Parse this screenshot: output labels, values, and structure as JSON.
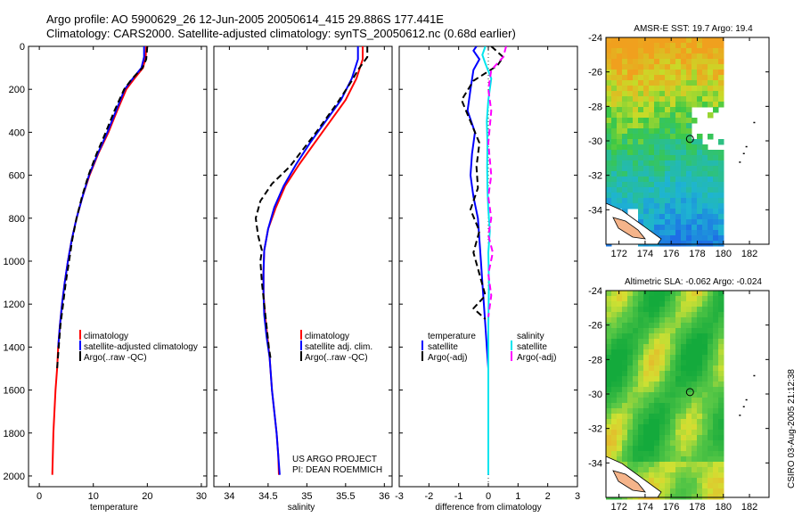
{
  "header": {
    "title_line1": "Argo profile: AO 5900629_26 12-Jun-2005 20050614_415 29.886S 177.441E",
    "title_line2": "Climatology: CARS2000. Satellite-adjusted climatology: synTS_20050612.nc (0.68d earlier)"
  },
  "side_stamp": "CSIRO 03-Aug-2005 21:12:38",
  "colors": {
    "clim": "#ff0000",
    "sat": "#0000ff",
    "argo": "#000000",
    "sal_sat": "#00e5ee",
    "sal_argo": "#ff00ff"
  },
  "labels": {
    "project": "US ARGO PROJECT",
    "pi": "PI: DEAN ROEMMICH",
    "legend_clim": "climatology",
    "legend_sat_adj": "satellite-adjusted climatology",
    "legend_sat_adj_short": "satellite adj. clim.",
    "legend_argo": "Argo(..raw -QC)",
    "legend_temperature": "temperature",
    "legend_salinity": "salinity",
    "legend_satellite": "satellite",
    "legend_argo_adj": "Argo(-adj)"
  },
  "chart_data": [
    {
      "type": "line",
      "name": "temperature_profile",
      "xlabel": "temperature",
      "ylabel": "",
      "xlim": [
        -2,
        31
      ],
      "ylim": [
        2050,
        0
      ],
      "xticks": [
        0,
        10,
        20,
        30
      ],
      "yticks": [
        0,
        200,
        400,
        600,
        800,
        1000,
        1200,
        1400,
        1600,
        1800,
        2000
      ],
      "series": [
        {
          "name": "climatology",
          "color": "#ff0000",
          "dash": false,
          "points": [
            [
              19.8,
              0
            ],
            [
              19.7,
              50
            ],
            [
              19.2,
              100
            ],
            [
              17.6,
              150
            ],
            [
              16.1,
              200
            ],
            [
              14.4,
              300
            ],
            [
              12.8,
              400
            ],
            [
              10.9,
              500
            ],
            [
              9.3,
              600
            ],
            [
              8.0,
              700
            ],
            [
              6.9,
              800
            ],
            [
              6.0,
              900
            ],
            [
              5.3,
              1000
            ],
            [
              4.7,
              1100
            ],
            [
              4.2,
              1200
            ],
            [
              3.8,
              1300
            ],
            [
              3.5,
              1400
            ],
            [
              3.3,
              1500
            ],
            [
              3.0,
              1600
            ],
            [
              2.8,
              1700
            ],
            [
              2.6,
              1800
            ],
            [
              2.5,
              1900
            ],
            [
              2.4,
              1995
            ]
          ]
        },
        {
          "name": "satellite-adjusted climatology",
          "color": "#0000ff",
          "dash": false,
          "points": [
            [
              19.4,
              0
            ],
            [
              19.4,
              50
            ],
            [
              18.9,
              100
            ],
            [
              17.3,
              150
            ],
            [
              15.8,
              200
            ],
            [
              14.2,
              300
            ],
            [
              12.6,
              400
            ],
            [
              10.8,
              500
            ],
            [
              9.2,
              600
            ],
            [
              8.0,
              700
            ],
            [
              6.9,
              800
            ],
            [
              6.0,
              900
            ],
            [
              5.3,
              1000
            ],
            [
              4.7,
              1100
            ],
            [
              4.2,
              1200
            ],
            [
              3.8,
              1300
            ],
            [
              3.5,
              1400
            ]
          ]
        },
        {
          "name": "Argo(..raw -QC)",
          "color": "#000000",
          "dash": true,
          "points": [
            [
              20.0,
              0
            ],
            [
              19.8,
              60
            ],
            [
              19.1,
              100
            ],
            [
              17.2,
              150
            ],
            [
              15.7,
              200
            ],
            [
              13.9,
              300
            ],
            [
              12.3,
              400
            ],
            [
              10.6,
              500
            ],
            [
              9.1,
              600
            ],
            [
              7.9,
              700
            ],
            [
              6.9,
              800
            ],
            [
              6.1,
              900
            ],
            [
              5.5,
              1000
            ],
            [
              4.9,
              1100
            ],
            [
              4.4,
              1200
            ],
            [
              3.9,
              1300
            ],
            [
              3.6,
              1400
            ],
            [
              3.3,
              1500
            ]
          ]
        }
      ]
    },
    {
      "type": "line",
      "name": "salinity_profile",
      "xlabel": "salinity",
      "ylabel": "",
      "xlim": [
        33.8,
        36.1
      ],
      "ylim": [
        2050,
        0
      ],
      "xticks": [
        34,
        34.5,
        35,
        35.5,
        36
      ],
      "series": [
        {
          "name": "climatology",
          "color": "#ff0000",
          "dash": false,
          "points": [
            [
              35.72,
              0
            ],
            [
              35.72,
              60
            ],
            [
              35.64,
              150
            ],
            [
              35.5,
              250
            ],
            [
              35.3,
              350
            ],
            [
              35.1,
              450
            ],
            [
              34.9,
              550
            ],
            [
              34.72,
              650
            ],
            [
              34.6,
              750
            ],
            [
              34.5,
              850
            ],
            [
              34.45,
              950
            ],
            [
              34.44,
              1050
            ],
            [
              34.44,
              1150
            ],
            [
              34.46,
              1250
            ],
            [
              34.49,
              1350
            ],
            [
              34.52,
              1450
            ],
            [
              34.55,
              1600
            ],
            [
              34.58,
              1700
            ],
            [
              34.61,
              1800
            ],
            [
              34.63,
              1900
            ],
            [
              34.64,
              1995
            ]
          ]
        },
        {
          "name": "satellite adj. clim.",
          "color": "#0000ff",
          "dash": false,
          "points": [
            [
              35.66,
              0
            ],
            [
              35.66,
              60
            ],
            [
              35.58,
              150
            ],
            [
              35.44,
              250
            ],
            [
              35.24,
              350
            ],
            [
              35.04,
              450
            ],
            [
              34.86,
              550
            ],
            [
              34.7,
              650
            ],
            [
              34.58,
              750
            ],
            [
              34.5,
              850
            ],
            [
              34.45,
              950
            ],
            [
              34.44,
              1050
            ],
            [
              34.44,
              1150
            ],
            [
              34.45,
              1250
            ],
            [
              34.48,
              1350
            ],
            [
              34.52,
              1450
            ],
            [
              34.55,
              1600
            ],
            [
              34.58,
              1700
            ],
            [
              34.61,
              1800
            ],
            [
              34.63,
              1900
            ],
            [
              34.65,
              1995
            ]
          ]
        },
        {
          "name": "Argo(..raw -QC)",
          "color": "#000000",
          "dash": true,
          "points": [
            [
              35.78,
              0
            ],
            [
              35.78,
              50
            ],
            [
              35.66,
              110
            ],
            [
              35.58,
              160
            ],
            [
              35.4,
              260
            ],
            [
              35.12,
              400
            ],
            [
              34.95,
              480
            ],
            [
              34.78,
              560
            ],
            [
              34.55,
              640
            ],
            [
              34.4,
              720
            ],
            [
              34.34,
              800
            ],
            [
              34.37,
              880
            ],
            [
              34.42,
              950
            ],
            [
              34.4,
              1000
            ],
            [
              34.42,
              1100
            ],
            [
              34.45,
              1200
            ],
            [
              34.48,
              1300
            ],
            [
              34.51,
              1400
            ],
            [
              34.53,
              1450
            ]
          ]
        }
      ]
    },
    {
      "type": "line",
      "name": "difference_profile",
      "xlabel": "difference from climatology",
      "ylabel": "",
      "xlim": [
        -3,
        3
      ],
      "ylim": [
        2050,
        0
      ],
      "xticks": [
        -3,
        -2,
        -1,
        0,
        1,
        2,
        3
      ],
      "series": [
        {
          "name": "temperature satellite",
          "color": "#0000ff",
          "dash": false,
          "points": [
            [
              -0.4,
              0
            ],
            [
              -0.5,
              20
            ],
            [
              -0.3,
              60
            ],
            [
              -0.5,
              110
            ],
            [
              -0.6,
              200
            ],
            [
              -0.7,
              300
            ],
            [
              -0.45,
              400
            ],
            [
              -0.55,
              500
            ],
            [
              -0.6,
              600
            ],
            [
              -0.5,
              700
            ],
            [
              -0.35,
              800
            ],
            [
              -0.3,
              900
            ],
            [
              -0.25,
              1000
            ],
            [
              -0.2,
              1100
            ],
            [
              -0.15,
              1200
            ],
            [
              -0.1,
              1300
            ],
            [
              -0.05,
              1400
            ],
            [
              0,
              1500
            ],
            [
              0,
              1995
            ]
          ]
        },
        {
          "name": "temperature Argo(-adj)",
          "color": "#000000",
          "dash": true,
          "points": [
            [
              0.1,
              0
            ],
            [
              0.5,
              50
            ],
            [
              0.3,
              90
            ],
            [
              -0.5,
              160
            ],
            [
              -0.9,
              250
            ],
            [
              -0.6,
              350
            ],
            [
              -0.3,
              450
            ],
            [
              -0.4,
              560
            ],
            [
              -0.35,
              660
            ],
            [
              -0.6,
              760
            ],
            [
              -0.3,
              860
            ],
            [
              -0.5,
              960
            ],
            [
              -0.3,
              1060
            ],
            [
              -0.1,
              1160
            ],
            [
              -0.5,
              1220
            ],
            [
              -0.1,
              1270
            ]
          ]
        },
        {
          "name": "salinity satellite",
          "color": "#00e5ee",
          "dash": false,
          "points": [
            [
              -0.1,
              0
            ],
            [
              -0.2,
              40
            ],
            [
              -0.1,
              80
            ],
            [
              0.1,
              150
            ],
            [
              0.0,
              250
            ],
            [
              -0.05,
              350
            ],
            [
              -0.03,
              450
            ],
            [
              -0.04,
              560
            ],
            [
              -0.03,
              660
            ],
            [
              0.0,
              760
            ],
            [
              0.05,
              860
            ],
            [
              0.0,
              960
            ],
            [
              0.02,
              1100
            ],
            [
              0.0,
              1300
            ],
            [
              0.0,
              1995
            ]
          ]
        },
        {
          "name": "salinity Argo(-adj)",
          "color": "#ff00ff",
          "dash": true,
          "points": [
            [
              0.6,
              0
            ],
            [
              0.5,
              50
            ],
            [
              0.1,
              110
            ],
            [
              0.0,
              200
            ],
            [
              0.1,
              300
            ],
            [
              0.0,
              450
            ],
            [
              0.1,
              600
            ],
            [
              0.0,
              700
            ],
            [
              0.1,
              800
            ],
            [
              0.0,
              880
            ],
            [
              0.15,
              960
            ],
            [
              0.0,
              1060
            ],
            [
              0.1,
              1160
            ],
            [
              0.0,
              1260
            ]
          ]
        }
      ]
    },
    {
      "type": "heatmap",
      "name": "sst_map",
      "title": "AMSR-E SST: 19.7  Argo: 19.4",
      "xlim": [
        171,
        183.5
      ],
      "ylim": [
        -36,
        -24
      ],
      "xticks": [
        172,
        174,
        176,
        178,
        180,
        182
      ],
      "yticks": [
        -24,
        -26,
        -28,
        -30,
        -32,
        -34
      ],
      "marker": [
        177.44,
        -29.89
      ]
    },
    {
      "type": "heatmap",
      "name": "sla_map",
      "title": "Altimetric SLA: -0.062  Argo: -0.024",
      "xlim": [
        171,
        183.5
      ],
      "ylim": [
        -36,
        -24
      ],
      "xticks": [
        172,
        174,
        176,
        178,
        180,
        182
      ],
      "yticks": [
        -24,
        -26,
        -28,
        -30,
        -32,
        -34
      ],
      "marker": [
        177.44,
        -29.89
      ]
    }
  ]
}
